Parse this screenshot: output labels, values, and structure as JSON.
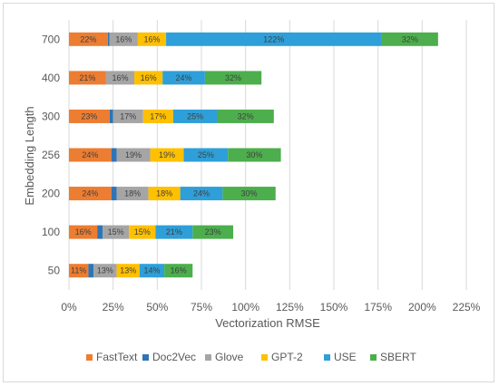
{
  "chart_data": {
    "type": "bar",
    "orientation": "horizontal",
    "stacked": true,
    "xlabel": "Vectorization RMSE",
    "ylabel": "Embedding Length",
    "xlim": [
      0,
      225
    ],
    "x_ticks": [
      "0%",
      "25%",
      "50%",
      "75%",
      "100%",
      "125%",
      "150%",
      "175%",
      "200%",
      "225%"
    ],
    "grid": "vertical",
    "legend_position": "bottom",
    "categories": [
      "700",
      "400",
      "300",
      "256",
      "200",
      "100",
      "50"
    ],
    "series": [
      {
        "name": "FastText",
        "color": "#ed7d31",
        "values": [
          22,
          21,
          23,
          24,
          24,
          16,
          11
        ],
        "labels": [
          "22%",
          "21%",
          "23%",
          "24%",
          "24%",
          "16%",
          "11%"
        ]
      },
      {
        "name": "Doc2Vec",
        "color": "#2e75b6",
        "values": [
          1,
          0,
          2,
          3,
          3,
          3,
          3
        ],
        "labels": [
          "",
          "",
          "",
          "",
          "",
          "",
          ""
        ]
      },
      {
        "name": "Glove",
        "color": "#a5a5a5",
        "values": [
          16,
          16,
          17,
          19,
          18,
          15,
          13
        ],
        "labels": [
          "16%",
          "16%",
          "17%",
          "19%",
          "18%",
          "15%",
          "13%"
        ]
      },
      {
        "name": "GPT-2",
        "color": "#ffc000",
        "values": [
          16,
          16,
          17,
          19,
          18,
          15,
          13
        ],
        "labels": [
          "16%",
          "16%",
          "17%",
          "19%",
          "18%",
          "15%",
          "13%"
        ]
      },
      {
        "name": "USE",
        "color": "#2e9fd8",
        "values": [
          122,
          24,
          25,
          25,
          24,
          21,
          14
        ],
        "labels": [
          "122%",
          "24%",
          "25%",
          "25%",
          "24%",
          "21%",
          "14%"
        ]
      },
      {
        "name": "SBERT",
        "color": "#4cae4c",
        "values": [
          32,
          32,
          32,
          30,
          30,
          23,
          16
        ],
        "labels": [
          "32%",
          "32%",
          "32%",
          "30%",
          "30%",
          "23%",
          "16%"
        ]
      }
    ]
  }
}
